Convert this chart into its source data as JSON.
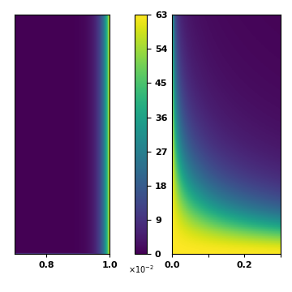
{
  "left_xlim": [
    0.007,
    0.01
  ],
  "left_ylim": [
    0.0,
    1.0
  ],
  "right_xlim": [
    0.0,
    0.3
  ],
  "right_ylim": [
    0.0,
    1.0
  ],
  "vmin": 0.0,
  "vmax": 0.63,
  "colorbar_ticks": [
    0.0,
    0.09,
    0.18,
    0.27,
    0.36,
    0.45,
    0.54,
    0.63
  ],
  "colorbar_ticklabels": [
    "0",
    "9",
    "18",
    "27",
    "36",
    "45",
    "54",
    "63"
  ],
  "cmap": "viridis",
  "left_xticks": [
    0.008,
    0.01
  ],
  "left_xticklabels": [
    "0.8",
    "1.0"
  ],
  "right_xticks": [
    0.0,
    0.1,
    0.2,
    0.3
  ],
  "right_xticklabels": [
    "0.0",
    "",
    "0.2",
    ""
  ],
  "figsize": [
    3.6,
    3.6
  ],
  "dpi": 100
}
